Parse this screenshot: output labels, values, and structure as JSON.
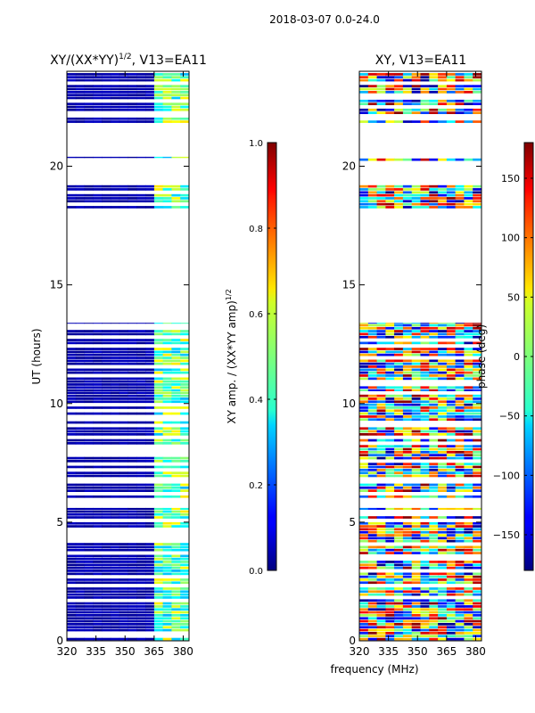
{
  "figure": {
    "suptitle": "2018-03-07 0.0-24.0",
    "xlabel": "frequency (MHz)"
  },
  "chart_data": [
    {
      "type": "heatmap",
      "title": "XY/(XX*YY)",
      "title_exponent": "1/2",
      "title_suffix": ", V13=EA11",
      "xlabel": "frequency (MHz)",
      "ylabel": "UT (hours)",
      "xlim": [
        320,
        383
      ],
      "ylim": [
        0,
        24
      ],
      "xticks": [
        320,
        335,
        350,
        365,
        380
      ],
      "yticks": [
        0,
        5,
        10,
        15,
        20
      ],
      "colorbar": {
        "label": "XY amp. / (XX*YY amp)",
        "label_exponent": "1/2",
        "range": [
          0.0,
          1.0
        ],
        "ticks": [
          "0.0",
          "0.2",
          "0.4",
          "0.6",
          "0.8",
          "1.0"
        ],
        "colormap": "jet"
      },
      "data_hours_ranges": [
        [
          0,
          5.6
        ],
        [
          6.0,
          10.6
        ],
        [
          10.6,
          13.4
        ],
        [
          18.2,
          19.2
        ],
        [
          20.2,
          20.4
        ],
        [
          21.8,
          24
        ]
      ]
    },
    {
      "type": "heatmap",
      "title": "XY, V13=EA11",
      "xlabel": "frequency (MHz)",
      "ylabel": "",
      "xlim": [
        320,
        383
      ],
      "ylim": [
        0,
        24
      ],
      "xticks": [
        320,
        335,
        350,
        365,
        380
      ],
      "yticks": [
        0,
        5,
        10,
        15,
        20
      ],
      "colorbar": {
        "label": "phase (deg)",
        "range": [
          -180,
          180
        ],
        "ticks": [
          "−150",
          "−100",
          "−50",
          "0",
          "50",
          "100",
          "150"
        ],
        "colormap": "jet"
      },
      "data_hours_ranges": [
        [
          0,
          5.6
        ],
        [
          6.0,
          10.6
        ],
        [
          10.6,
          13.4
        ],
        [
          18.2,
          19.2
        ],
        [
          20.2,
          20.4
        ],
        [
          21.8,
          24
        ]
      ]
    }
  ]
}
